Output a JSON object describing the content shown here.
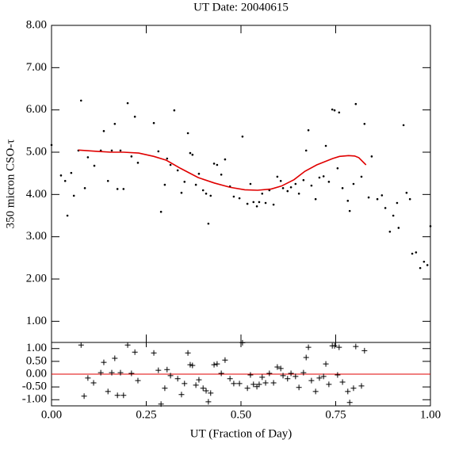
{
  "chart_data": [
    {
      "type": "scatter",
      "title": "UT Date: 20040615",
      "y_label": "350 micron CSO-τ",
      "xlim": [
        0,
        1
      ],
      "ylim": [
        0.5,
        8
      ],
      "xticks": [
        0,
        0.25,
        0.5,
        0.75,
        1
      ],
      "yticks": [
        {
          "value": 1,
          "label": "1.00"
        },
        {
          "value": 2,
          "label": "2.00"
        },
        {
          "value": 3,
          "label": "3.00"
        },
        {
          "value": 4,
          "label": "4.00"
        },
        {
          "value": 5,
          "label": "5.00"
        },
        {
          "value": 6,
          "label": "6.00"
        },
        {
          "value": 7,
          "label": "7.00"
        },
        {
          "value": 8,
          "label": "8.00"
        }
      ],
      "series": [
        {
          "type": "scatter",
          "marker": "dot",
          "color": "#000000",
          "x": [
            0.0,
            0.025,
            0.036,
            0.042,
            0.052,
            0.059,
            0.071,
            0.078,
            0.088,
            0.096,
            0.113,
            0.13,
            0.138,
            0.149,
            0.159,
            0.167,
            0.174,
            0.182,
            0.19,
            0.201,
            0.211,
            0.22,
            0.228,
            0.27,
            0.282,
            0.289,
            0.299,
            0.305,
            0.314,
            0.324,
            0.333,
            0.343,
            0.351,
            0.36,
            0.366,
            0.372,
            0.381,
            0.389,
            0.4,
            0.408,
            0.414,
            0.42,
            0.429,
            0.437,
            0.448,
            0.458,
            0.471,
            0.481,
            0.496,
            0.504,
            0.517,
            0.525,
            0.533,
            0.542,
            0.548,
            0.556,
            0.565,
            0.575,
            0.586,
            0.596,
            0.605,
            0.611,
            0.623,
            0.632,
            0.644,
            0.653,
            0.665,
            0.672,
            0.678,
            0.686,
            0.697,
            0.707,
            0.718,
            0.724,
            0.732,
            0.741,
            0.747,
            0.755,
            0.759,
            0.768,
            0.782,
            0.787,
            0.797,
            0.803,
            0.818,
            0.826,
            0.837,
            0.845,
            0.86,
            0.872,
            0.881,
            0.893,
            0.902,
            0.912,
            0.916,
            0.929,
            0.937,
            0.946,
            0.952,
            0.962,
            0.973,
            0.983,
            0.992,
            1.0
          ],
          "values": [
            5.17,
            4.45,
            4.32,
            3.5,
            4.51,
            3.97,
            5.04,
            6.22,
            4.15,
            4.88,
            4.68,
            5.04,
            5.5,
            4.32,
            5.04,
            5.67,
            4.13,
            5.04,
            4.13,
            6.16,
            4.9,
            5.84,
            4.75,
            5.69,
            5.02,
            3.59,
            4.23,
            4.85,
            4.7,
            5.99,
            4.57,
            4.04,
            4.3,
            5.45,
            4.98,
            4.94,
            4.23,
            4.49,
            4.1,
            4.02,
            3.31,
            3.97,
            4.73,
            4.7,
            4.47,
            4.83,
            4.19,
            3.95,
            3.91,
            5.37,
            3.78,
            4.25,
            3.82,
            3.72,
            3.82,
            4.02,
            3.8,
            4.1,
            3.76,
            4.42,
            4.32,
            4.15,
            4.08,
            4.17,
            4.25,
            4.02,
            4.34,
            5.04,
            5.52,
            4.21,
            3.89,
            4.4,
            4.43,
            5.15,
            4.3,
            6.01,
            5.99,
            4.62,
            5.94,
            4.15,
            3.85,
            3.61,
            4.25,
            6.14,
            4.42,
            5.67,
            3.93,
            4.9,
            3.89,
            3.98,
            3.68,
            3.12,
            3.5,
            3.8,
            3.21,
            5.64,
            4.04,
            3.89,
            2.6,
            2.63,
            2.26,
            2.41,
            2.33,
            3.25
          ]
        },
        {
          "type": "line",
          "color": "#e00000",
          "x": [
            0.071,
            0.12,
            0.157,
            0.19,
            0.23,
            0.27,
            0.303,
            0.34,
            0.387,
            0.43,
            0.471,
            0.51,
            0.544,
            0.58,
            0.607,
            0.64,
            0.669,
            0.7,
            0.742,
            0.76,
            0.784,
            0.8,
            0.811,
            0.83
          ],
          "values": [
            5.05,
            5.02,
            5.0,
            5.0,
            4.98,
            4.9,
            4.81,
            4.62,
            4.4,
            4.27,
            4.17,
            4.11,
            4.1,
            4.13,
            4.2,
            4.35,
            4.55,
            4.7,
            4.85,
            4.9,
            4.92,
            4.91,
            4.87,
            4.7
          ]
        }
      ]
    },
    {
      "type": "scatter",
      "x_label": "UT (Fraction of Day)",
      "xlim": [
        0,
        1
      ],
      "ylim": [
        -1.24,
        1.24
      ],
      "xticks": [
        {
          "value": 0,
          "label": "0.00"
        },
        {
          "value": 0.25,
          "label": "0.25"
        },
        {
          "value": 0.5,
          "label": "0.50"
        },
        {
          "value": 0.75,
          "label": "0.75"
        },
        {
          "value": 1,
          "label": "1.00"
        }
      ],
      "yticks": [
        {
          "value": -1,
          "label": "-1.00"
        },
        {
          "value": -0.5,
          "label": "-0.50"
        },
        {
          "value": 0,
          "label": "0.00"
        },
        {
          "value": 0.5,
          "label": "0.50"
        },
        {
          "value": 1,
          "label": "1.00"
        }
      ],
      "hline": {
        "value": 0,
        "color": "#e00000"
      },
      "series": [
        {
          "type": "scatter",
          "marker": "plus",
          "color": "#000000",
          "x": [
            0.078,
            0.086,
            0.096,
            0.111,
            0.13,
            0.138,
            0.149,
            0.159,
            0.167,
            0.174,
            0.182,
            0.19,
            0.201,
            0.211,
            0.22,
            0.228,
            0.27,
            0.282,
            0.289,
            0.299,
            0.305,
            0.314,
            0.333,
            0.343,
            0.351,
            0.36,
            0.366,
            0.372,
            0.381,
            0.389,
            0.4,
            0.408,
            0.414,
            0.42,
            0.429,
            0.437,
            0.448,
            0.458,
            0.471,
            0.481,
            0.496,
            0.504,
            0.517,
            0.525,
            0.533,
            0.542,
            0.548,
            0.556,
            0.565,
            0.575,
            0.586,
            0.596,
            0.605,
            0.611,
            0.623,
            0.632,
            0.644,
            0.653,
            0.665,
            0.672,
            0.678,
            0.686,
            0.697,
            0.707,
            0.718,
            0.724,
            0.732,
            0.741,
            0.747,
            0.755,
            0.759,
            0.768,
            0.782,
            0.787,
            0.797,
            0.803,
            0.818,
            0.826
          ],
          "values": [
            1.14,
            -0.86,
            -0.15,
            -0.34,
            0.06,
            0.46,
            -0.68,
            0.06,
            0.62,
            -0.83,
            0.06,
            -0.83,
            1.14,
            0.03,
            0.86,
            -0.25,
            0.83,
            0.15,
            -1.17,
            -0.55,
            0.18,
            -0.06,
            -0.18,
            -0.8,
            -0.37,
            0.83,
            0.37,
            0.34,
            -0.43,
            -0.22,
            -0.55,
            -0.65,
            -1.08,
            -0.74,
            0.37,
            0.4,
            0.03,
            0.55,
            -0.18,
            -0.37,
            -0.37,
            1.23,
            -0.55,
            -0.03,
            -0.4,
            -0.49,
            -0.4,
            -0.12,
            -0.34,
            0.03,
            -0.34,
            0.28,
            0.22,
            -0.06,
            -0.18,
            0.03,
            -0.09,
            -0.52,
            0.06,
            0.65,
            1.05,
            -0.25,
            -0.68,
            -0.15,
            -0.09,
            0.4,
            -0.4,
            1.11,
            1.11,
            -0.03,
            1.05,
            -0.31,
            -0.68,
            -1.11,
            -0.55,
            1.08,
            -0.46,
            0.92
          ]
        }
      ]
    }
  ]
}
